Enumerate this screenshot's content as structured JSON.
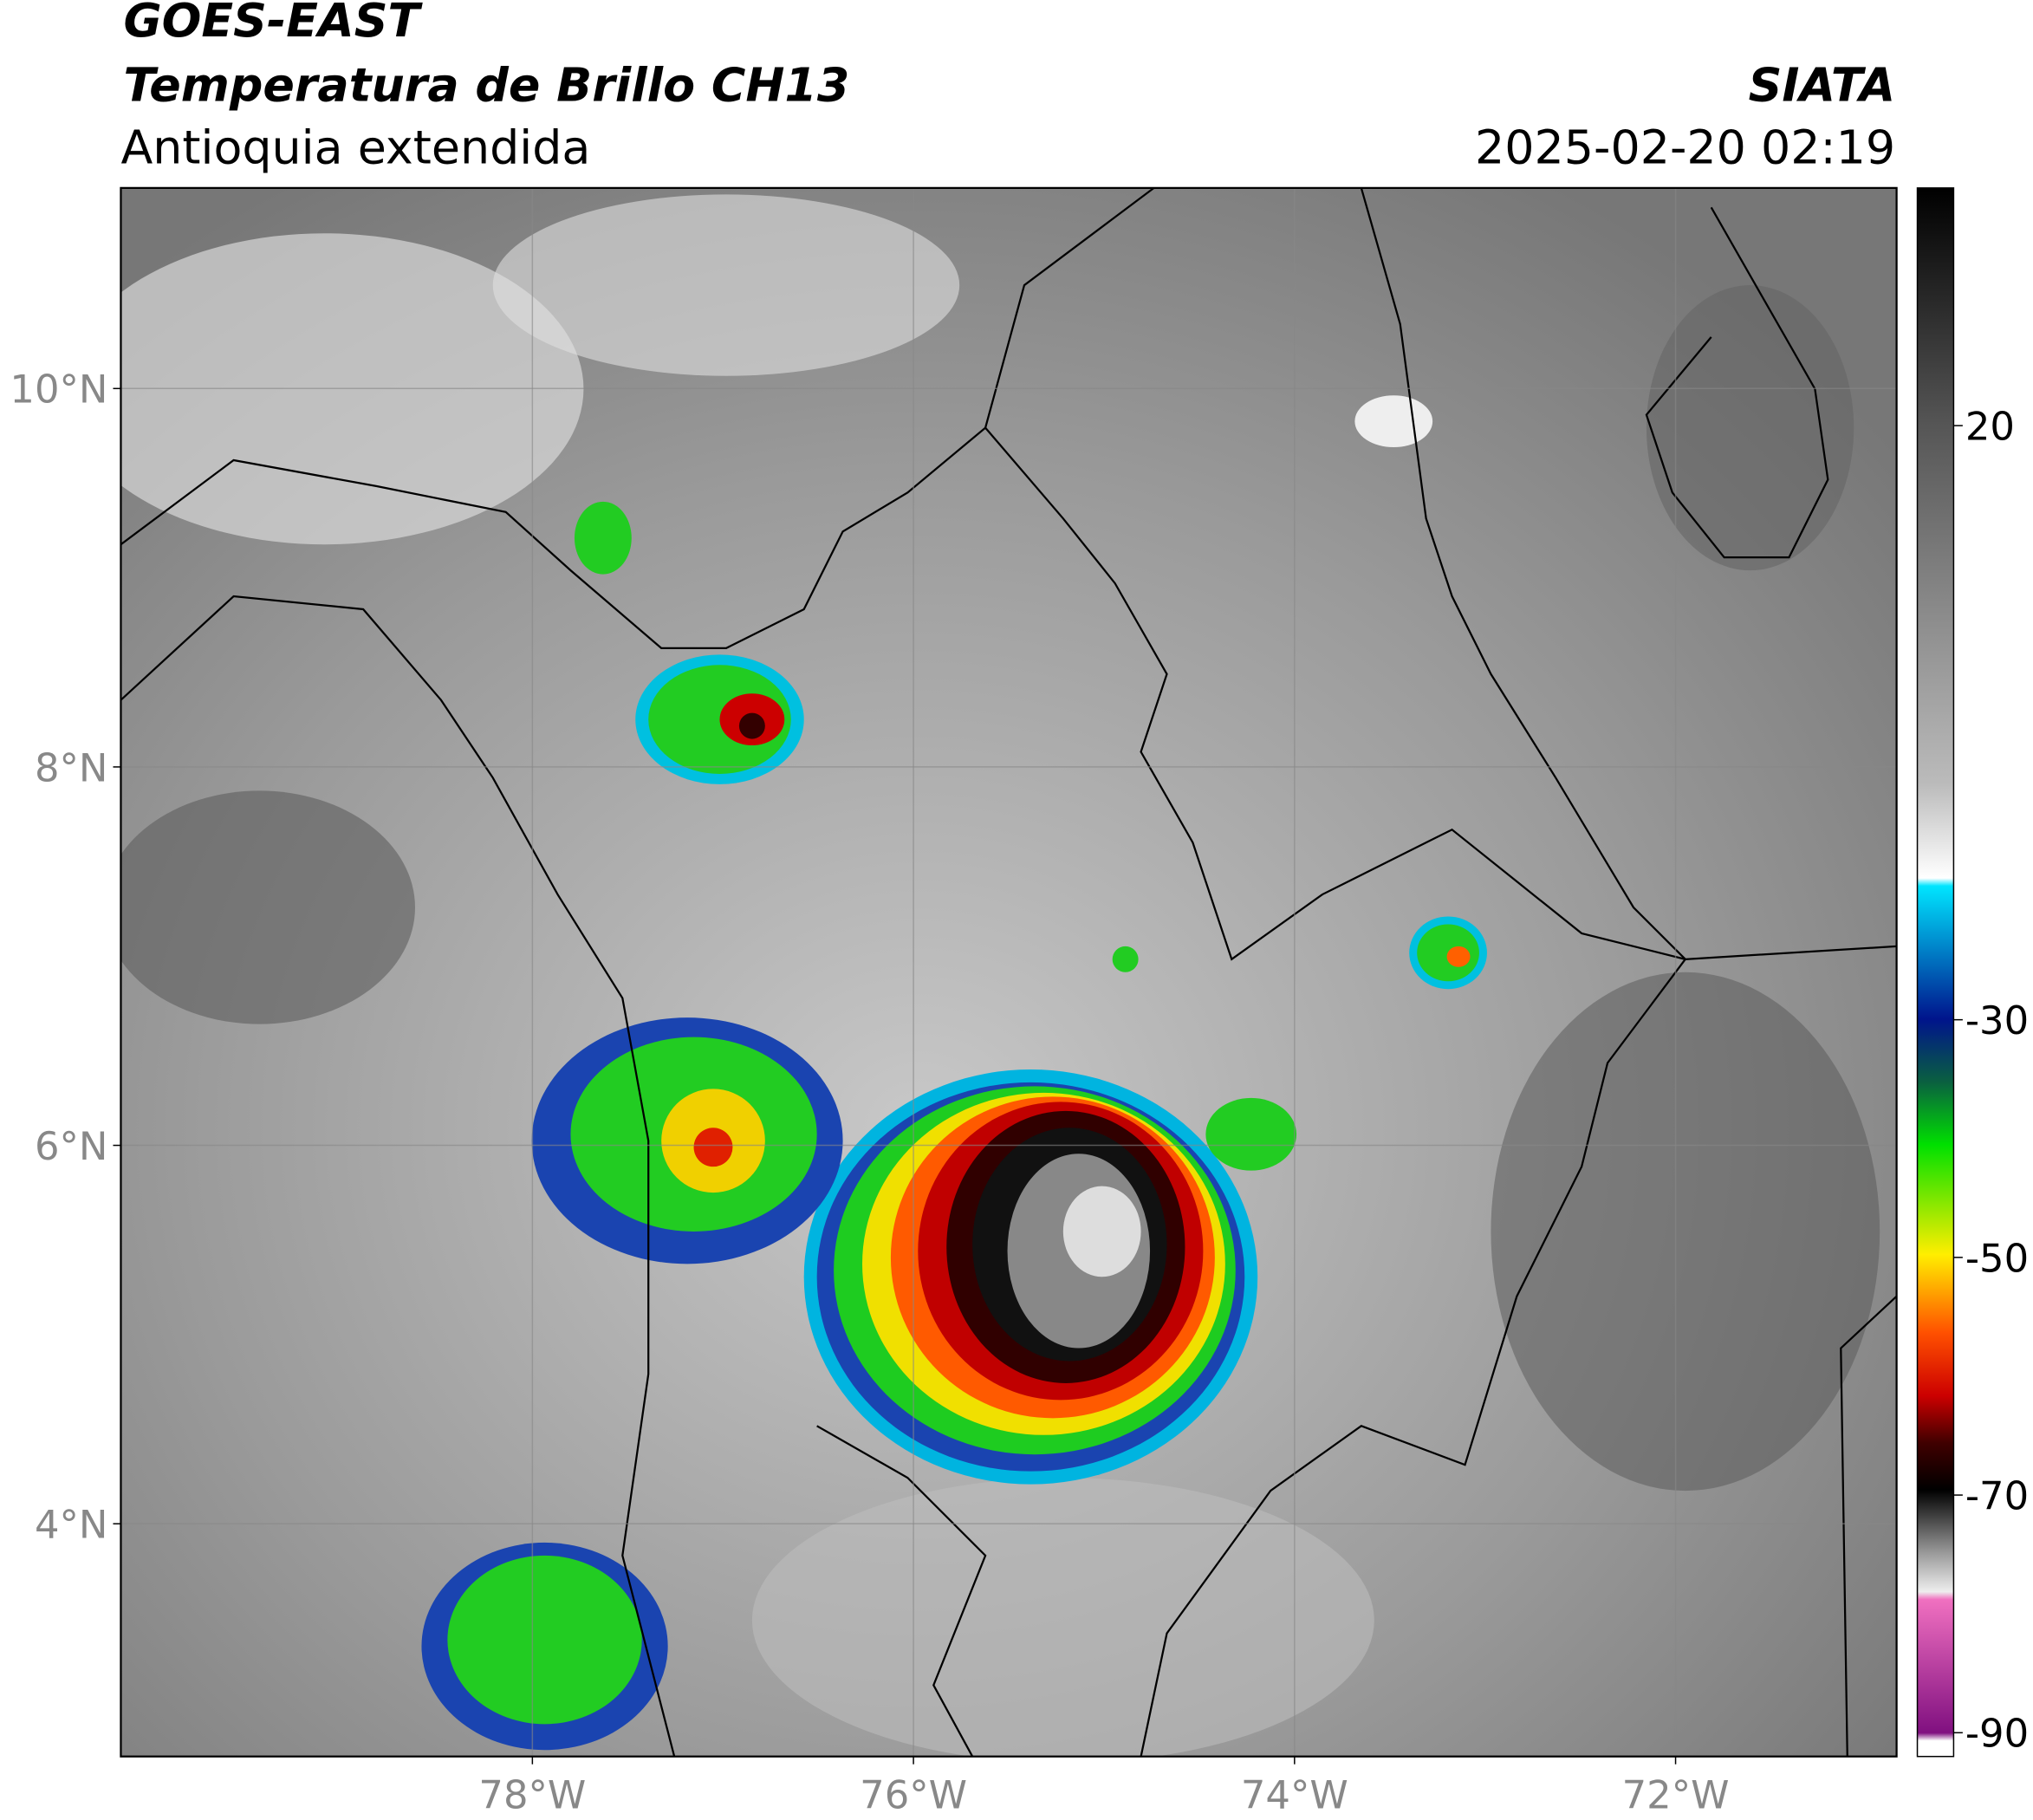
{
  "header": {
    "source": "GOES-EAST",
    "product": "Temperatura de Brillo CH13",
    "region": "Antioquia extendida",
    "agency": "SIATA",
    "datetime": "2025-02-20 02:19"
  },
  "map": {
    "lonlim": [
      -80.16,
      -70.84
    ],
    "latlim": [
      2.77,
      11.06
    ],
    "lon_ticks": [
      {
        "value": -78,
        "label": "78°W"
      },
      {
        "value": -76,
        "label": "76°W"
      },
      {
        "value": -74,
        "label": "74°W"
      },
      {
        "value": -72,
        "label": "72°W"
      }
    ],
    "lat_ticks": [
      {
        "value": 10,
        "label": "10°N"
      },
      {
        "value": 8,
        "label": "8°N"
      },
      {
        "value": 6,
        "label": "6°N"
      },
      {
        "value": 4,
        "label": "4°N"
      }
    ],
    "grid": true
  },
  "colorbar": {
    "lim": [
      -92,
      40
    ],
    "ticks": [
      20,
      -30,
      -50,
      -70,
      -90
    ]
  }
}
